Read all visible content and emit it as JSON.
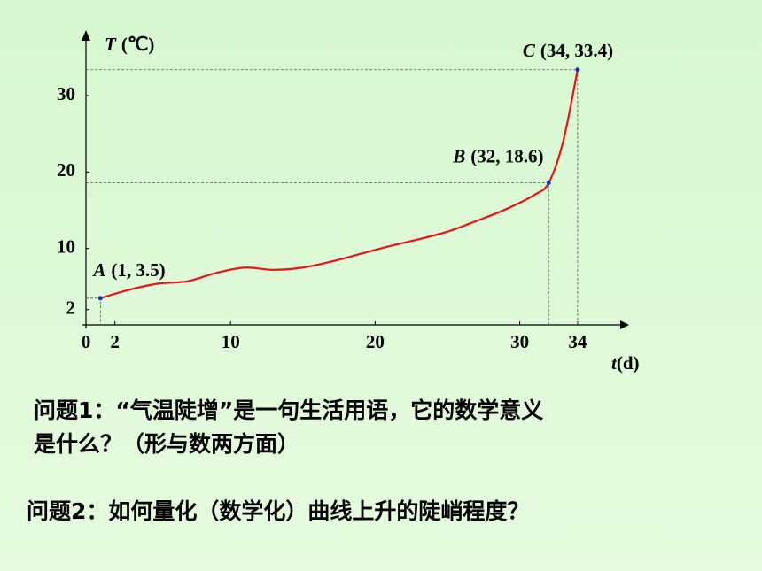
{
  "chart_data": {
    "type": "line",
    "ylabel": {
      "symbol": "T",
      "unit": "(℃)"
    },
    "xlabel": {
      "symbol": "t",
      "unit": "(d)"
    },
    "x": [
      1,
      3,
      5,
      7,
      9,
      11,
      13,
      15,
      17,
      19,
      21,
      23,
      25,
      27,
      29,
      31,
      32,
      33,
      34
    ],
    "series": [
      {
        "color": "#e8141b",
        "values": [
          3.5,
          4.6,
          5.4,
          5.7,
          6.8,
          7.5,
          7.2,
          7.5,
          8.3,
          9.3,
          10.3,
          11.2,
          12.2,
          13.6,
          15.1,
          17,
          18.6,
          24,
          33.4
        ]
      }
    ],
    "points": [
      {
        "name": "A",
        "x": 1,
        "y": 3.5,
        "label": "(1, 3.5)"
      },
      {
        "name": "B",
        "x": 32,
        "y": 18.6,
        "label": "(32, 18.6)"
      },
      {
        "name": "C",
        "x": 34,
        "y": 33.4,
        "label": "(34, 33.4)"
      }
    ],
    "xlim": [
      0,
      36
    ],
    "ylim": [
      0,
      38
    ],
    "xticks": [
      0,
      2,
      10,
      20,
      30,
      34
    ],
    "yticks": [
      2,
      10,
      20,
      30
    ]
  },
  "questions": [
    "问题1：“气温陡增”是一句生活用语，它的数学意义",
    "是什么？（形与数两方面）",
    "问题2：如何量化（数学化）曲线上升的陡峭程度？"
  ]
}
